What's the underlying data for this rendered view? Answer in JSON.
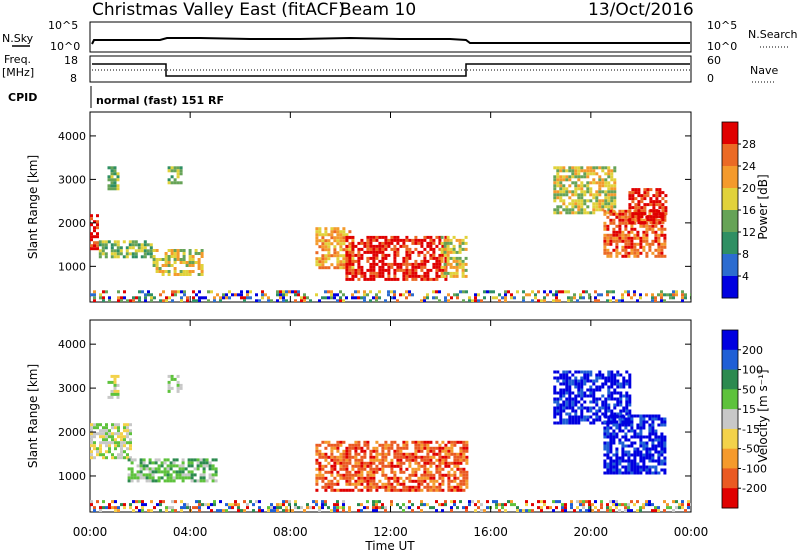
{
  "header": {
    "title": "Christmas Valley East (fitACF)",
    "beam": "Beam 10",
    "date": "13/Oct/2016"
  },
  "top_strip": {
    "left_nsky": "N.Sky",
    "left_freq_line1": "Freq.",
    "left_freq_line2": "[MHz]",
    "left_cpid": "CPID",
    "nsky_ticks": [
      "10^5",
      "10^0"
    ],
    "freq_ticks": [
      "18",
      "8"
    ],
    "right_nsearch": "N.Search",
    "right_nave": "Nave",
    "nsearch_ticks": [
      "10^5",
      "10^0"
    ],
    "nave_ticks": [
      "60",
      "0"
    ],
    "cpid_text": "normal (fast) 151 RF"
  },
  "chart_data": [
    {
      "type": "heatmap",
      "panel": "power",
      "ylabel": "Slant Range [km]",
      "xlabel": "",
      "ylim": [
        180,
        4550
      ],
      "yticks": [
        "1000",
        "2000",
        "3000",
        "4000"
      ],
      "colorbar_label": "Power [dB]",
      "colorbar_ticks": [
        "4",
        "8",
        "12",
        "16",
        "20",
        "24",
        "28"
      ],
      "colorbar_colors": [
        "#0000e0",
        "#2c6cd0",
        "#2f8f63",
        "#66a357",
        "#e1d23b",
        "#f49a2c",
        "#eb6a25",
        "#e00000"
      ],
      "echo_regions": [
        {
          "t": [
            0.0,
            0.35
          ],
          "r": [
            1400,
            2200
          ],
          "level": 7
        },
        {
          "t": [
            0.35,
            2.5
          ],
          "r": [
            1200,
            1600
          ],
          "level": 3
        },
        {
          "t": [
            2.5,
            4.5
          ],
          "r": [
            800,
            1400
          ],
          "level": 4
        },
        {
          "t": [
            0.7,
            1.1
          ],
          "r": [
            2800,
            3300
          ],
          "level": 3
        },
        {
          "t": [
            3.1,
            3.6
          ],
          "r": [
            2900,
            3300
          ],
          "level": 3
        },
        {
          "t": [
            9.0,
            10.5
          ],
          "r": [
            1000,
            1900
          ],
          "level": 5
        },
        {
          "t": [
            10.2,
            14.2
          ],
          "r": [
            700,
            1700
          ],
          "level": 7
        },
        {
          "t": [
            14.0,
            15.0
          ],
          "r": [
            800,
            1700
          ],
          "level": 4
        },
        {
          "t": [
            18.5,
            21.0
          ],
          "r": [
            2200,
            3300
          ],
          "level": 4
        },
        {
          "t": [
            20.5,
            23.0
          ],
          "r": [
            1200,
            2300
          ],
          "level": 6
        },
        {
          "t": [
            21.5,
            23.0
          ],
          "r": [
            2000,
            2800
          ],
          "level": 7
        },
        {
          "t": [
            0.0,
            24.0
          ],
          "r": [
            200,
            450
          ],
          "level": 2
        }
      ]
    },
    {
      "type": "heatmap",
      "panel": "velocity",
      "ylabel": "Slant Range [km]",
      "xlabel": "Time UT",
      "ylim": [
        180,
        4550
      ],
      "yticks": [
        "1000",
        "2000",
        "3000",
        "4000"
      ],
      "xticks": [
        "00:00",
        "04:00",
        "08:00",
        "12:00",
        "16:00",
        "20:00",
        "00:00"
      ],
      "colorbar_label": "Velocity [m s⁻¹]",
      "colorbar_ticks": [
        "200",
        "100",
        "50",
        "15",
        "-15",
        "-50",
        "-100",
        "-200"
      ],
      "colorbar_colors": [
        "#0000e0",
        "#1f5fd6",
        "#2c8a4f",
        "#5ec23c",
        "#c8c8c8",
        "#f3d24a",
        "#f59a2c",
        "#ea5a22",
        "#e00000"
      ],
      "echo_regions": [
        {
          "t": [
            0.0,
            1.6
          ],
          "r": [
            1400,
            2200
          ],
          "level": 4
        },
        {
          "t": [
            0.7,
            1.1
          ],
          "r": [
            2800,
            3300
          ],
          "level": 4
        },
        {
          "t": [
            3.1,
            3.6
          ],
          "r": [
            2900,
            3300
          ],
          "level": 4
        },
        {
          "t": [
            1.5,
            5.0
          ],
          "r": [
            900,
            1400
          ],
          "level": 3
        },
        {
          "t": [
            9.0,
            15.0
          ],
          "r": [
            700,
            1800
          ],
          "level": 7
        },
        {
          "t": [
            18.5,
            21.5
          ],
          "r": [
            2200,
            3400
          ],
          "level": 0
        },
        {
          "t": [
            20.5,
            23.0
          ],
          "r": [
            1100,
            2400
          ],
          "level": 0
        },
        {
          "t": [
            0.0,
            24.0
          ],
          "r": [
            200,
            450
          ],
          "level": 4
        }
      ]
    }
  ]
}
